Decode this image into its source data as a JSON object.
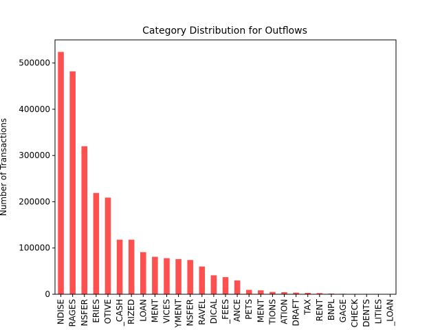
{
  "chart_data": {
    "type": "bar",
    "title": "Category Distribution for Outflows",
    "xlabel": "",
    "ylabel": "Number of Transactions",
    "ylim": [
      0,
      550000
    ],
    "yticks": [
      0,
      100000,
      200000,
      300000,
      400000,
      500000
    ],
    "ytick_labels": [
      "0",
      "100000",
      "200000",
      "300000",
      "400000",
      "500000"
    ],
    "bar_color": "#ff5050",
    "grid": false,
    "legend": "none",
    "categories": [
      "NDISE",
      "RAGES",
      "NSFER",
      "ERIES",
      "OTIVE",
      "_CASH",
      "RIZED",
      "LOAN",
      "MENT",
      "VICES",
      "YMENT",
      "NSFER",
      "RAVEL",
      "DICAL",
      "_FEES",
      "ANCE",
      "PETS",
      "MENT",
      "TIONS",
      "ATION",
      "DRAFT",
      "TAX",
      "RENT",
      "BNPL",
      "GAGE",
      "CHECK",
      "DENTS",
      "LITIES",
      "_LOAN"
    ],
    "values": [
      524000,
      482000,
      320000,
      219000,
      209000,
      118000,
      118000,
      91000,
      81000,
      78000,
      76000,
      74000,
      60000,
      41000,
      37000,
      30000,
      9500,
      8500,
      5000,
      4500,
      3500,
      3000,
      2500,
      1500,
      1000,
      500,
      300,
      200,
      100
    ]
  }
}
